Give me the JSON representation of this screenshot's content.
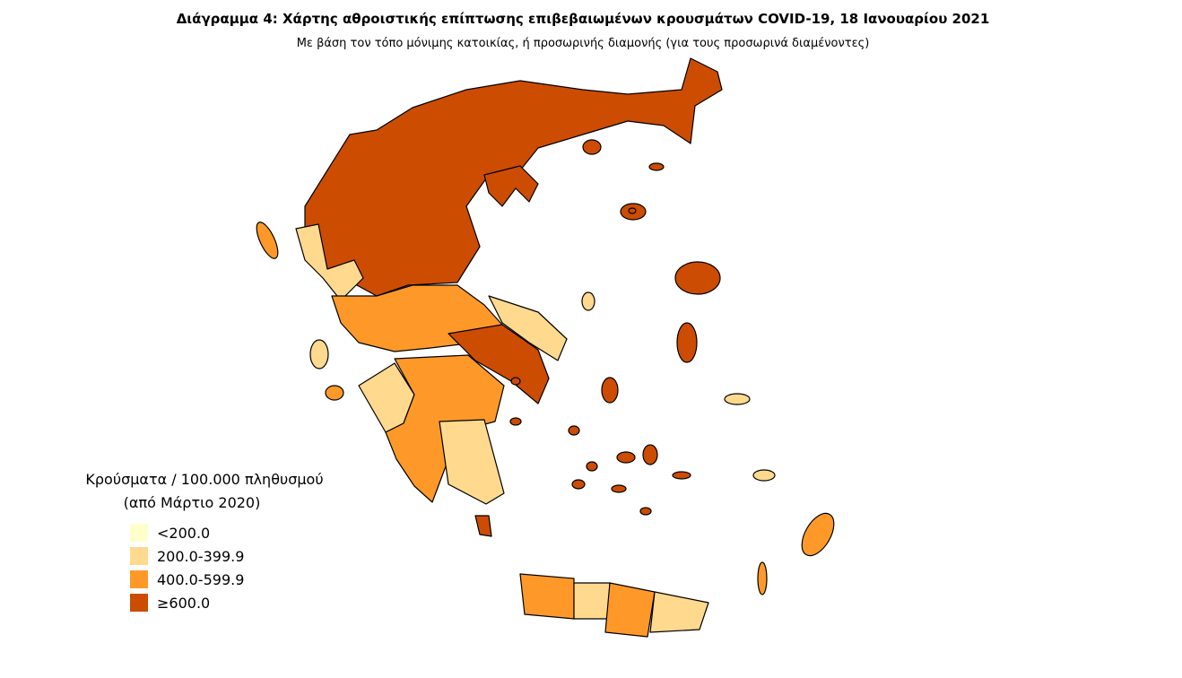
{
  "title": "Διάγραμμα 4: Χάρτης αθροιστικής επίπτωσης επιβεβαιωμένων κρουσμάτων COVID-19, 18 Ιανουαρίου 2021",
  "subtitle": "Με βάση τον τόπο μόνιμης κατοικίας, ή προσωρινής διαμονής (για τους προσωρινά διαμένοντες)",
  "legend": {
    "title": [
      "Κρούσματα / 100.000 πληθυσμού",
      "(από Μάρτιο 2020)"
    ],
    "items": [
      {
        "label": "<200.0",
        "color": "#ffffcc"
      },
      {
        "label": "200.0-399.9",
        "color": "#fed98e"
      },
      {
        "label": "400.0-599.9",
        "color": "#fe9929"
      },
      {
        "label": "≥600.0",
        "color": "#cc4c02"
      }
    ]
  }
}
